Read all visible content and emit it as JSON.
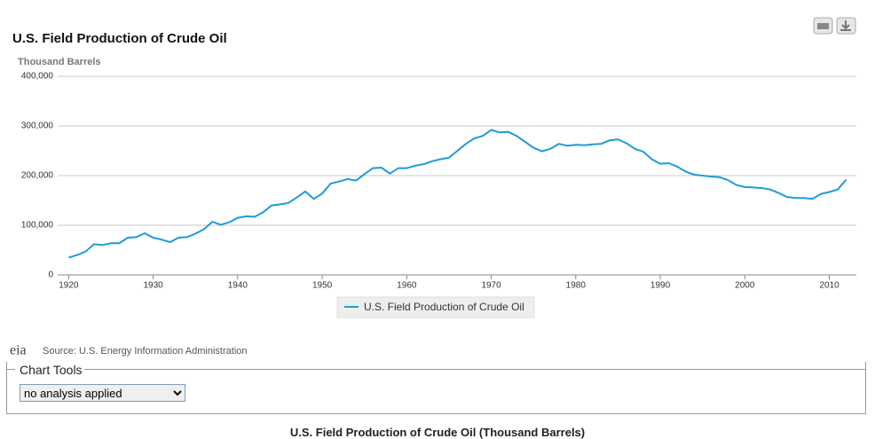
{
  "chart_data": {
    "type": "line",
    "title": "U.S. Field Production of Crude Oil",
    "subtitle": "Thousand Barrels",
    "x": [
      1920,
      1921,
      1922,
      1923,
      1924,
      1925,
      1926,
      1927,
      1928,
      1929,
      1930,
      1931,
      1932,
      1933,
      1934,
      1935,
      1936,
      1937,
      1938,
      1939,
      1940,
      1941,
      1942,
      1943,
      1944,
      1945,
      1946,
      1947,
      1948,
      1949,
      1950,
      1951,
      1952,
      1953,
      1954,
      1955,
      1956,
      1957,
      1958,
      1959,
      1960,
      1961,
      1962,
      1963,
      1964,
      1965,
      1966,
      1967,
      1968,
      1969,
      1970,
      1971,
      1972,
      1973,
      1974,
      1975,
      1976,
      1977,
      1978,
      1979,
      1980,
      1981,
      1982,
      1983,
      1984,
      1985,
      1986,
      1987,
      1988,
      1989,
      1990,
      1991,
      1992,
      1993,
      1994,
      1995,
      1996,
      1997,
      1998,
      1999,
      2000,
      2001,
      2002,
      2003,
      2004,
      2005,
      2006,
      2007,
      2008,
      2009,
      2010,
      2011,
      2012
    ],
    "series": [
      {
        "name": "U.S. Field Production of Crude Oil",
        "color": "#1f9bd7",
        "values": [
          35000,
          40000,
          47000,
          62000,
          60000,
          64000,
          64000,
          75000,
          76000,
          84000,
          75000,
          71000,
          66000,
          75000,
          76000,
          83000,
          92000,
          107000,
          101000,
          106000,
          115000,
          118000,
          117000,
          126000,
          140000,
          142000,
          145000,
          156000,
          168000,
          153000,
          164000,
          184000,
          188000,
          193000,
          190000,
          203000,
          215000,
          216000,
          204000,
          215000,
          215000,
          220000,
          223000,
          229000,
          233000,
          236000,
          250000,
          264000,
          275000,
          280000,
          292000,
          287000,
          288000,
          280000,
          268000,
          256000,
          249000,
          254000,
          264000,
          260000,
          262000,
          261000,
          263000,
          264000,
          271000,
          273000,
          265000,
          254000,
          248000,
          233000,
          224000,
          225000,
          218000,
          208000,
          202000,
          200000,
          198000,
          197000,
          191000,
          181000,
          177000,
          176000,
          175000,
          172000,
          165000,
          157000,
          155000,
          155000,
          153000,
          163000,
          167000,
          172000,
          192000
        ]
      }
    ],
    "xlim": [
      1918.7,
      2013.2
    ],
    "xticks": [
      1920,
      1930,
      1940,
      1950,
      1960,
      1970,
      1980,
      1990,
      2000,
      2010
    ],
    "ylim": [
      0,
      400000
    ],
    "yticks": [
      0,
      {
        "value": 100000,
        "label": "100,000"
      },
      {
        "value": 200000,
        "label": "200,000"
      },
      {
        "value": 300000,
        "label": "300,000"
      },
      {
        "value": 400000,
        "label": "400,000"
      }
    ],
    "grid": true
  },
  "source": "Source: U.S. Energy Information Administration",
  "logo": "eia",
  "tools": {
    "legend": "Chart Tools",
    "analysis": "no analysis applied"
  },
  "table_title": "U.S. Field Production of Crude Oil (Thousand Barrels)"
}
